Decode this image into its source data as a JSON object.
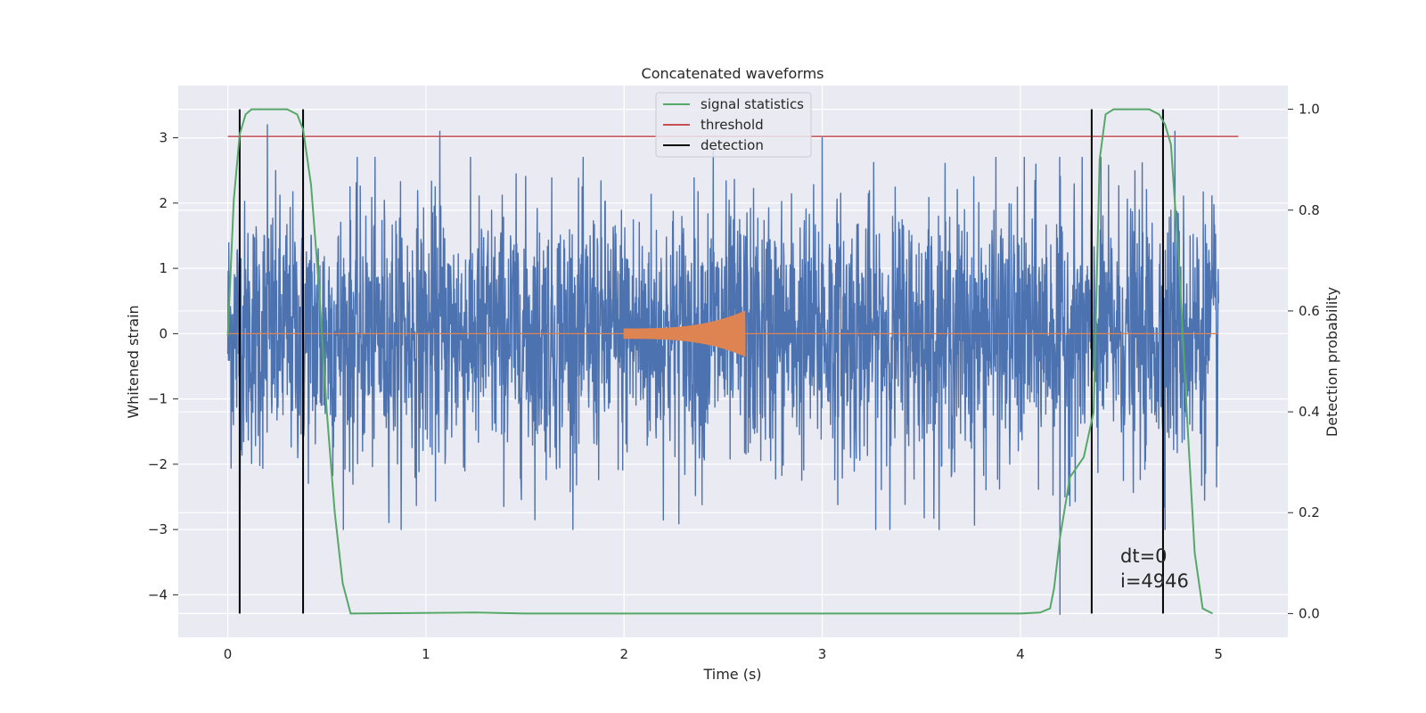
{
  "chart_data": {
    "type": "line",
    "title": "Concatenated waveforms",
    "xlabel": "Time (s)",
    "ylabel_left": "Whitened strain",
    "ylabel_right": "Detection probability",
    "xlim": [
      -0.25,
      5.35
    ],
    "ylim_left": [
      -4.65,
      3.8
    ],
    "ylim_right": [
      -0.047,
      1.047
    ],
    "x_ticks": [
      0,
      1,
      2,
      3,
      4,
      5
    ],
    "x_tick_labels": [
      "0",
      "1",
      "2",
      "3",
      "4",
      "5"
    ],
    "y_ticks_left": [
      3,
      2,
      1,
      0,
      -1,
      -2,
      -3,
      -4
    ],
    "y_tick_labels_left": [
      "3",
      "2",
      "1",
      "0",
      "−1",
      "−2",
      "−3",
      "−4"
    ],
    "y_ticks_right": [
      1.0,
      0.8,
      0.6,
      0.4,
      0.2,
      0.0
    ],
    "y_tick_labels_right": [
      "1.0",
      "0.8",
      "0.6",
      "0.4",
      "0.2",
      "0.0"
    ],
    "grid": true,
    "legend_position": "upper center",
    "series": [
      {
        "role": "whitened strain noise",
        "axis": "left",
        "color": "#4c72b0",
        "x_range": [
          0,
          5
        ],
        "approx_amplitude": 1.0,
        "spikes": [
          [
            0.06,
            -3.6
          ],
          [
            0.2,
            3.2
          ],
          [
            1.07,
            3.1
          ],
          [
            2.45,
            2.8
          ],
          [
            3.0,
            3.0
          ],
          [
            4.2,
            -4.3
          ],
          [
            4.78,
            3.1
          ]
        ]
      },
      {
        "role": "injected chirp signal",
        "axis": "left",
        "color": "#dd8452",
        "x_range": [
          2.0,
          2.61
        ],
        "start_amplitude": 0.08,
        "peak_amplitude": 0.35
      },
      {
        "name": "signal statistics",
        "axis": "right",
        "color": "#55a868",
        "x": [
          0,
          0.03,
          0.06,
          0.09,
          0.12,
          0.15,
          0.2,
          0.3,
          0.35,
          0.38,
          0.42,
          0.46,
          0.5,
          0.54,
          0.58,
          0.62,
          1.25,
          1.5,
          4.0,
          4.1,
          4.15,
          4.17,
          4.2,
          4.25,
          4.32,
          4.37,
          4.4,
          4.43,
          4.47,
          4.55,
          4.65,
          4.7,
          4.73,
          4.76,
          4.8,
          4.84,
          4.88,
          4.92,
          4.97
        ],
        "y": [
          0.55,
          0.82,
          0.95,
          0.99,
          1.0,
          1.0,
          1.0,
          1.0,
          0.99,
          0.96,
          0.85,
          0.65,
          0.4,
          0.2,
          0.06,
          0.0,
          0.002,
          0.0,
          0.0,
          0.002,
          0.01,
          0.05,
          0.15,
          0.27,
          0.31,
          0.4,
          0.9,
          0.99,
          1.0,
          1.0,
          1.0,
          0.99,
          0.97,
          0.93,
          0.7,
          0.4,
          0.12,
          0.01,
          0.0
        ]
      },
      {
        "name": "threshold",
        "axis": "left",
        "color": "#c44e52",
        "x": [
          0,
          5.1
        ],
        "y": [
          3.02,
          3.02
        ]
      },
      {
        "name": "detection",
        "axis": "right",
        "color": "#000000",
        "type": "vlines",
        "x": [
          0.06,
          0.38,
          4.36,
          4.72
        ],
        "y_range": [
          0.0,
          1.0
        ]
      }
    ],
    "annotations": [
      "dt=0",
      "i=4946"
    ]
  }
}
